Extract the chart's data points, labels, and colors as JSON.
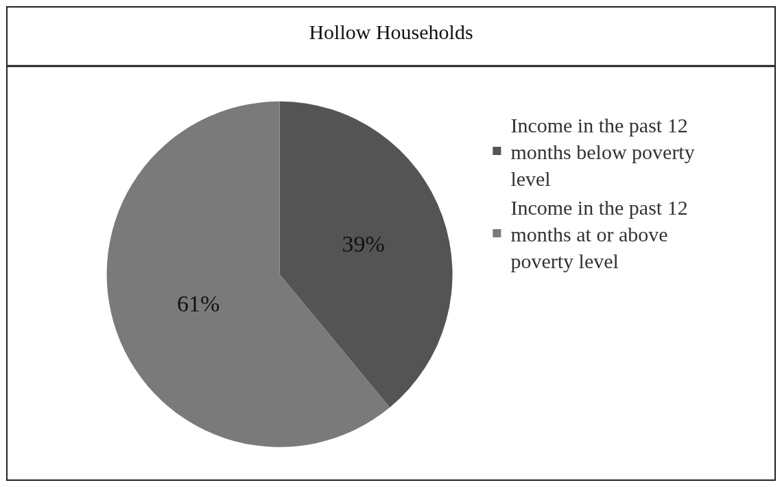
{
  "chart_data": {
    "type": "pie",
    "title": "Hollow Households",
    "categories": [
      "Income in the past 12 months below poverty level",
      "Income in the past 12 months at or above poverty level"
    ],
    "values": [
      39,
      61
    ],
    "value_labels": [
      "39%",
      "61%"
    ],
    "colors": [
      "#545454",
      "#7a7a7a"
    ],
    "legend": "right"
  }
}
